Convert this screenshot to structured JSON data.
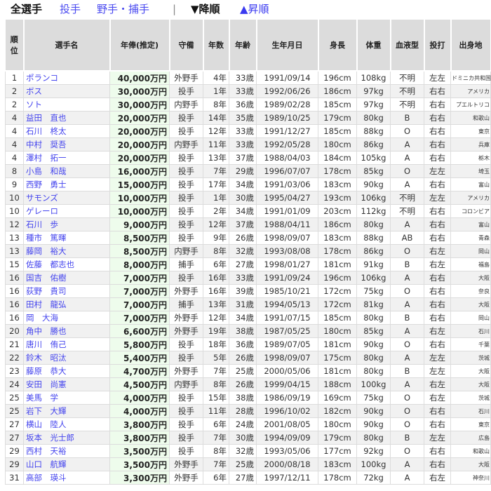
{
  "nav": {
    "all": "全選手",
    "pitchers": "投手",
    "fielders": "野手・捕手",
    "separator": "|",
    "desc": "▼降順",
    "asc": "▲昇順"
  },
  "colors": {
    "link": "#4444ee",
    "header_bg": "#dcdcdc",
    "salary_bg": "#eefcec"
  },
  "table": {
    "headers": [
      "順位",
      "選手名",
      "年俸(推定)",
      "守備",
      "年数",
      "年齢",
      "生年月日",
      "身長",
      "体重",
      "血液型",
      "投打",
      "出身地"
    ],
    "rows": [
      [
        "1",
        "ポランコ",
        "40,000万円",
        "外野手",
        "4年",
        "33歳",
        "1991/09/14",
        "196cm",
        "108kg",
        "不明",
        "左左",
        "ドミニカ共和国"
      ],
      [
        "2",
        "ボス",
        "30,000万円",
        "投手",
        "1年",
        "33歳",
        "1992/06/26",
        "186cm",
        "97kg",
        "不明",
        "右右",
        "アメリカ"
      ],
      [
        "2",
        "ソト",
        "30,000万円",
        "内野手",
        "8年",
        "36歳",
        "1989/02/28",
        "185cm",
        "97kg",
        "不明",
        "右右",
        "プエルトリコ"
      ],
      [
        "4",
        "益田　直也",
        "20,000万円",
        "投手",
        "14年",
        "35歳",
        "1989/10/25",
        "179cm",
        "80kg",
        "B",
        "右右",
        "和歌山"
      ],
      [
        "4",
        "石川　柊太",
        "20,000万円",
        "投手",
        "12年",
        "33歳",
        "1991/12/27",
        "185cm",
        "88kg",
        "O",
        "右右",
        "東京"
      ],
      [
        "4",
        "中村　奨吾",
        "20,000万円",
        "内野手",
        "11年",
        "33歳",
        "1992/05/28",
        "180cm",
        "86kg",
        "A",
        "右右",
        "兵庫"
      ],
      [
        "4",
        "澤村　拓一",
        "20,000万円",
        "投手",
        "13年",
        "37歳",
        "1988/04/03",
        "184cm",
        "105kg",
        "A",
        "右右",
        "栃木"
      ],
      [
        "8",
        "小島　和哉",
        "16,000万円",
        "投手",
        "7年",
        "29歳",
        "1996/07/07",
        "178cm",
        "85kg",
        "O",
        "左左",
        "埼玉"
      ],
      [
        "9",
        "西野　勇士",
        "15,000万円",
        "投手",
        "17年",
        "34歳",
        "1991/03/06",
        "183cm",
        "90kg",
        "A",
        "右右",
        "富山"
      ],
      [
        "10",
        "サモンズ",
        "10,000万円",
        "投手",
        "1年",
        "30歳",
        "1995/04/27",
        "193cm",
        "106kg",
        "不明",
        "左左",
        "アメリカ"
      ],
      [
        "10",
        "ゲレーロ",
        "10,000万円",
        "投手",
        "2年",
        "34歳",
        "1991/01/09",
        "203cm",
        "112kg",
        "不明",
        "右右",
        "コロンビア"
      ],
      [
        "12",
        "石川　歩",
        "9,000万円",
        "投手",
        "12年",
        "37歳",
        "1988/04/11",
        "186cm",
        "80kg",
        "A",
        "右右",
        "富山"
      ],
      [
        "13",
        "種市　篤暉",
        "8,500万円",
        "投手",
        "9年",
        "26歳",
        "1998/09/07",
        "183cm",
        "88kg",
        "AB",
        "右右",
        "青森"
      ],
      [
        "13",
        "藤岡　裕大",
        "8,500万円",
        "内野手",
        "8年",
        "32歳",
        "1993/08/08",
        "178cm",
        "86kg",
        "O",
        "右左",
        "岡山"
      ],
      [
        "15",
        "佐藤　都志也",
        "8,000万円",
        "捕手",
        "6年",
        "27歳",
        "1998/01/27",
        "181cm",
        "91kg",
        "B",
        "右左",
        "福島"
      ],
      [
        "16",
        "国吉　佑樹",
        "7,000万円",
        "投手",
        "16年",
        "33歳",
        "1991/09/24",
        "196cm",
        "106kg",
        "A",
        "右右",
        "大阪"
      ],
      [
        "16",
        "荻野　貴司",
        "7,000万円",
        "外野手",
        "16年",
        "39歳",
        "1985/10/21",
        "172cm",
        "75kg",
        "O",
        "右右",
        "奈良"
      ],
      [
        "16",
        "田村　龍弘",
        "7,000万円",
        "捕手",
        "13年",
        "31歳",
        "1994/05/13",
        "172cm",
        "81kg",
        "A",
        "右右",
        "大阪"
      ],
      [
        "16",
        "岡　大海",
        "7,000万円",
        "外野手",
        "12年",
        "34歳",
        "1991/07/15",
        "185cm",
        "80kg",
        "B",
        "右右",
        "岡山"
      ],
      [
        "20",
        "角中　勝也",
        "6,600万円",
        "外野手",
        "19年",
        "38歳",
        "1987/05/25",
        "180cm",
        "85kg",
        "A",
        "右左",
        "石川"
      ],
      [
        "21",
        "唐川　侑己",
        "5,800万円",
        "投手",
        "18年",
        "36歳",
        "1989/07/05",
        "181cm",
        "90kg",
        "O",
        "右右",
        "千葉"
      ],
      [
        "22",
        "鈴木　昭汰",
        "5,400万円",
        "投手",
        "5年",
        "26歳",
        "1998/09/07",
        "175cm",
        "80kg",
        "A",
        "左左",
        "茨城"
      ],
      [
        "23",
        "藤原　恭大",
        "4,700万円",
        "外野手",
        "7年",
        "25歳",
        "2000/05/06",
        "181cm",
        "80kg",
        "B",
        "左左",
        "大阪"
      ],
      [
        "24",
        "安田　尚憲",
        "4,500万円",
        "内野手",
        "8年",
        "26歳",
        "1999/04/15",
        "188cm",
        "100kg",
        "A",
        "右左",
        "大阪"
      ],
      [
        "25",
        "美馬　学",
        "4,000万円",
        "投手",
        "15年",
        "38歳",
        "1986/09/19",
        "169cm",
        "75kg",
        "O",
        "右左",
        "茨城"
      ],
      [
        "25",
        "岩下　大輝",
        "4,000万円",
        "投手",
        "11年",
        "28歳",
        "1996/10/02",
        "182cm",
        "90kg",
        "O",
        "右右",
        "石川"
      ],
      [
        "27",
        "横山　陸人",
        "3,800万円",
        "投手",
        "6年",
        "24歳",
        "2001/08/05",
        "180cm",
        "90kg",
        "O",
        "右右",
        "東京"
      ],
      [
        "27",
        "坂本　光士郎",
        "3,800万円",
        "投手",
        "7年",
        "30歳",
        "1994/09/09",
        "179cm",
        "80kg",
        "B",
        "左左",
        "広島"
      ],
      [
        "29",
        "西村　天裕",
        "3,500万円",
        "投手",
        "8年",
        "32歳",
        "1993/05/06",
        "177cm",
        "92kg",
        "O",
        "右右",
        "和歌山"
      ],
      [
        "29",
        "山口　航輝",
        "3,500万円",
        "外野手",
        "7年",
        "25歳",
        "2000/08/18",
        "183cm",
        "100kg",
        "A",
        "右右",
        "大阪"
      ],
      [
        "31",
        "高部　瑛斗",
        "3,300万円",
        "外野手",
        "6年",
        "27歳",
        "1997/12/11",
        "178cm",
        "72kg",
        "A",
        "右左",
        "神奈川"
      ]
    ]
  }
}
